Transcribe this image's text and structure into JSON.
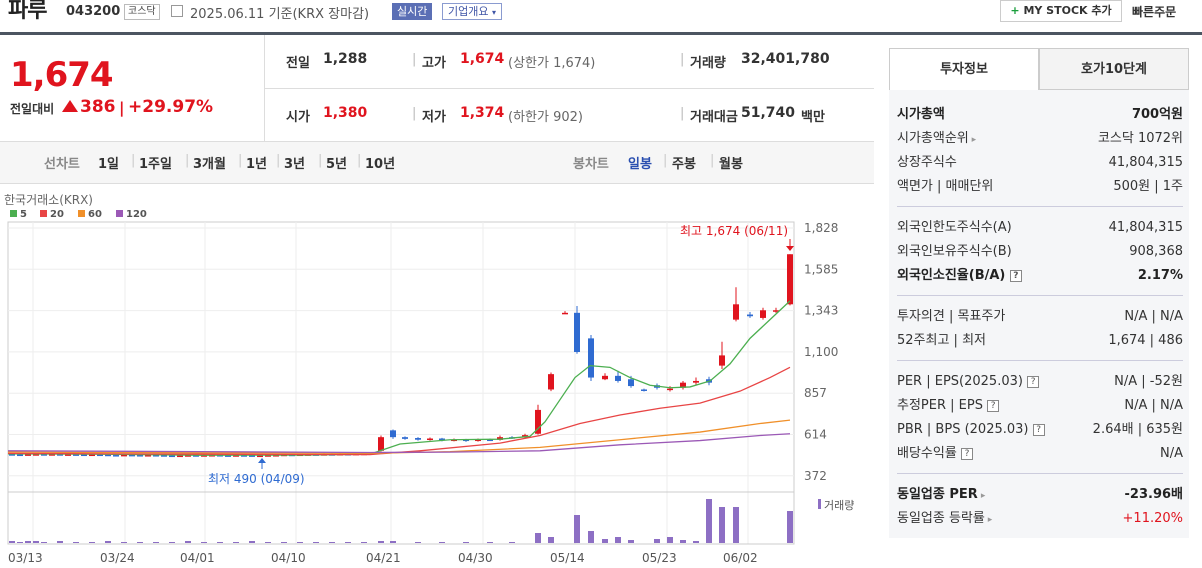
{
  "header": {
    "name": "파루",
    "code": "043200",
    "market": "코스닥",
    "date": "2025.06.11 기준(KRX 장마감)",
    "realtime_btn": "실시간",
    "company_btn": "기업개요",
    "mystock_btn": "MY STOCK 추가",
    "quick_order": "빠른주문"
  },
  "price": {
    "current": "1,674",
    "change_label": "전일대비",
    "change_value": "386",
    "change_pct": "+29.97%"
  },
  "summary": {
    "prev_label": "전일",
    "prev": "1,288",
    "high_label": "고가",
    "high": "1,674",
    "upper_limit": "(상한가 1,674)",
    "volume_label": "거래량",
    "volume": "32,401,780",
    "open_label": "시가",
    "open": "1,380",
    "low_label": "저가",
    "low": "1,374",
    "lower_limit": "(하한가 902)",
    "amount_label": "거래대금",
    "amount": "51,740",
    "amount_unit": "백만"
  },
  "period_tabs": {
    "line_chart": "선차트",
    "items": [
      "1일",
      "1주일",
      "3개월",
      "1년",
      "3년",
      "5년",
      "10년"
    ],
    "candle_chart": "봉차트",
    "candle_items": [
      "일봉",
      "주봉",
      "월봉"
    ],
    "selected_candle": "일봉"
  },
  "chart_legend": {
    "source": "한국거래소(KRX)",
    "ma": [
      {
        "label": "5",
        "color": "#4caf50"
      },
      {
        "label": "20",
        "color": "#e84545"
      },
      {
        "label": "60",
        "color": "#f0902a"
      },
      {
        "label": "120",
        "color": "#9b59b6"
      }
    ]
  },
  "chart_data": {
    "type": "candlestick",
    "y_ticks": [
      "1,828",
      "1,585",
      "1,343",
      "1,100",
      "857",
      "614",
      "372"
    ],
    "x_ticks": [
      "03/13",
      "03/24",
      "04/01",
      "04/10",
      "04/21",
      "04/30",
      "05/14",
      "05/23",
      "06/02"
    ],
    "max_annotation": "최고 1,674 (06/11)",
    "min_annotation": "최저 490 (04/09)",
    "volume_label": "거래량"
  },
  "right_panel": {
    "tab_info": "투자정보",
    "tab_orderbook": "호가10단계",
    "group1": [
      {
        "k": "시가총액",
        "v": "700억원",
        "bold": true
      },
      {
        "k": "시가총액순위",
        "v": "코스닥 1072위",
        "arrow": true
      },
      {
        "k": "상장주식수",
        "v": "41,804,315"
      },
      {
        "k": "액면가 | 매매단위",
        "v": "500원 | 1주"
      }
    ],
    "group2": [
      {
        "k": "외국인한도주식수(A)",
        "v": "41,804,315"
      },
      {
        "k": "외국인보유주식수(B)",
        "v": "908,368"
      },
      {
        "k": "외국인소진율(B/A)",
        "v": "2.17%",
        "bold": true,
        "q": true
      }
    ],
    "group3": [
      {
        "k": "투자의견 | 목표주가",
        "v": "N/A | N/A"
      },
      {
        "k": "52주최고 | 최저",
        "v": "1,674 | 486"
      }
    ],
    "group4": [
      {
        "k": "PER | EPS(2025.03)",
        "v": "N/A | -52원",
        "q": true
      },
      {
        "k": "추정PER | EPS",
        "v": "N/A | N/A",
        "q": true
      },
      {
        "k": "PBR | BPS (2025.03)",
        "v": "2.64배 | 635원",
        "q": true
      },
      {
        "k": "배당수익률",
        "v": "N/A",
        "q": true
      }
    ],
    "group5": [
      {
        "k": "동일업종 PER",
        "v": "-23.96배",
        "bold": true,
        "arrow": true
      },
      {
        "k": "동일업종 등락률",
        "v": "+11.20%",
        "arrow": true,
        "red": true
      }
    ]
  }
}
